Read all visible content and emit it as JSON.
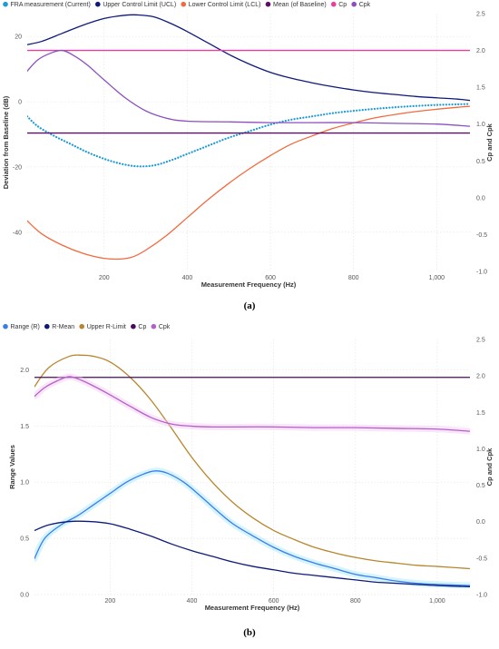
{
  "chart_data": [
    {
      "type": "line",
      "panel_label": "(a)",
      "xlabel": "Measurement Frequency (Hz)",
      "ylabel": "Deviation from Baseline (dB)",
      "y2label": "Cp and Cpk",
      "xlim": [
        15,
        1080
      ],
      "ylim": [
        -52,
        27
      ],
      "y2lim": [
        -1.0,
        2.5
      ],
      "x_ticks": [
        200,
        400,
        600,
        800,
        1000
      ],
      "x_tick_labels": [
        "200",
        "400",
        "600",
        "800",
        "1,000"
      ],
      "y_ticks": [
        20,
        0,
        -20,
        -40
      ],
      "y_tick_labels": [
        "20",
        "0",
        "-20",
        "-40"
      ],
      "y2_ticks": [
        2.5,
        2.0,
        1.5,
        1.0,
        0.5,
        0.0,
        -0.5,
        -1.0
      ],
      "y2_tick_labels": [
        "2.5",
        "2.0",
        "1.5",
        "1.0",
        "0.5",
        "0.0",
        "-0.5",
        "-1.0"
      ],
      "grid": true,
      "legend_position": "top-left",
      "series": [
        {
          "name": "FRA measurement (Current)",
          "color": "#1f9bd7",
          "style": "dotted",
          "axis": "left",
          "x": [
            15,
            40,
            80,
            120,
            160,
            200,
            240,
            280,
            320,
            360,
            400,
            450,
            500,
            550,
            600,
            650,
            700,
            750,
            800,
            850,
            900,
            950,
            1000,
            1050,
            1080
          ],
          "y": [
            -4.5,
            -7.5,
            -10.5,
            -13,
            -15.5,
            -17.5,
            -19,
            -19.8,
            -19.5,
            -18,
            -16,
            -13.5,
            -11,
            -9,
            -7,
            -5.5,
            -4.5,
            -3.5,
            -2.8,
            -2.2,
            -1.7,
            -1.3,
            -1,
            -0.8,
            -0.7
          ]
        },
        {
          "name": "Upper Control Limit (UCL)",
          "color": "#0d1a7a",
          "style": "solid",
          "axis": "left",
          "x": [
            15,
            50,
            100,
            150,
            200,
            250,
            280,
            320,
            360,
            400,
            450,
            500,
            550,
            600,
            650,
            700,
            750,
            800,
            850,
            900,
            950,
            1000,
            1050,
            1080
          ],
          "y": [
            17.5,
            18.5,
            21,
            23.5,
            25.5,
            26.5,
            26.6,
            26,
            24,
            21.5,
            18,
            14.5,
            11.5,
            9,
            7.2,
            5.8,
            4.6,
            3.6,
            2.8,
            2.2,
            1.6,
            1.2,
            0.8,
            0.4
          ]
        },
        {
          "name": "Lower Control Limit (LCL)",
          "color": "#f26a3d",
          "style": "solid",
          "axis": "left",
          "x": [
            15,
            50,
            100,
            150,
            200,
            240,
            270,
            300,
            350,
            400,
            450,
            500,
            550,
            600,
            650,
            700,
            750,
            800,
            850,
            900,
            950,
            1000,
            1050,
            1080
          ],
          "y": [
            -36.5,
            -40.5,
            -44,
            -46.5,
            -48,
            -48.2,
            -47.5,
            -45.5,
            -41,
            -35.5,
            -30,
            -25,
            -20.5,
            -16.5,
            -13,
            -10.5,
            -8.2,
            -6.5,
            -5,
            -3.9,
            -3,
            -2.3,
            -1.7,
            -1.4
          ]
        },
        {
          "name": "Mean (of Baseline)",
          "color": "#5c0f63",
          "style": "solid",
          "axis": "left",
          "x": [
            15,
            1080
          ],
          "y": [
            -9.6,
            -9.6
          ]
        },
        {
          "name": "Cp",
          "color": "#e83e9e",
          "style": "solid",
          "axis": "right",
          "x": [
            15,
            1080
          ],
          "y": [
            2.0,
            2.0
          ]
        },
        {
          "name": "Cpk",
          "color": "#8c4fc0",
          "style": "solid",
          "axis": "right",
          "x": [
            15,
            40,
            70,
            100,
            130,
            160,
            200,
            250,
            300,
            350,
            400,
            500,
            600,
            700,
            800,
            900,
            1000,
            1080
          ],
          "y": [
            1.72,
            1.87,
            1.96,
            2.0,
            1.92,
            1.8,
            1.6,
            1.36,
            1.18,
            1.08,
            1.04,
            1.03,
            1.02,
            1.02,
            1.02,
            1.01,
            1.0,
            0.97
          ]
        }
      ]
    },
    {
      "type": "line",
      "panel_label": "(b)",
      "xlabel": "Measurement Frequency (Hz)",
      "ylabel": "Range Values",
      "y2label": "Cp and Cpk",
      "xlim": [
        15,
        1080
      ],
      "ylim": [
        0,
        2.27
      ],
      "y2lim": [
        -1.0,
        2.5
      ],
      "x_ticks": [
        200,
        400,
        600,
        800,
        1000
      ],
      "x_tick_labels": [
        "200",
        "400",
        "600",
        "800",
        "1,000"
      ],
      "y_ticks": [
        2.0,
        1.5,
        1.0,
        0.5,
        0.0
      ],
      "y_tick_labels": [
        "2.0",
        "1.5",
        "1.0",
        "0.5",
        "0.0"
      ],
      "y2_ticks": [
        2.5,
        2.0,
        1.5,
        1.0,
        0.5,
        0.0,
        -0.5,
        -1.0
      ],
      "y2_tick_labels": [
        "2.5",
        "2.0",
        "1.5",
        "1.0",
        "0.5",
        "0.0",
        "-0.5",
        "-1.0"
      ],
      "grid": true,
      "legend_position": "top-left",
      "series": [
        {
          "name": "Range (R)",
          "color": "#3b7de8",
          "style": "solid",
          "axis": "left",
          "glow": "#9fe6ff",
          "x": [
            15,
            40,
            80,
            120,
            160,
            200,
            240,
            280,
            310,
            340,
            380,
            420,
            460,
            500,
            550,
            600,
            650,
            700,
            750,
            800,
            850,
            900,
            950,
            1000,
            1080
          ],
          "y": [
            0.32,
            0.5,
            0.62,
            0.7,
            0.8,
            0.9,
            1.0,
            1.07,
            1.1,
            1.08,
            1.0,
            0.88,
            0.75,
            0.63,
            0.52,
            0.42,
            0.34,
            0.28,
            0.23,
            0.18,
            0.15,
            0.12,
            0.1,
            0.09,
            0.08
          ]
        },
        {
          "name": "R-Mean",
          "color": "#0d1a7a",
          "style": "solid",
          "axis": "left",
          "x": [
            15,
            50,
            100,
            150,
            200,
            250,
            300,
            350,
            400,
            450,
            500,
            550,
            600,
            650,
            700,
            750,
            800,
            850,
            900,
            950,
            1000,
            1080
          ],
          "y": [
            0.57,
            0.62,
            0.65,
            0.65,
            0.63,
            0.58,
            0.52,
            0.45,
            0.39,
            0.34,
            0.29,
            0.25,
            0.22,
            0.19,
            0.17,
            0.15,
            0.13,
            0.11,
            0.1,
            0.09,
            0.08,
            0.07
          ]
        },
        {
          "name": "Upper R-Limit",
          "color": "#b8862e",
          "style": "solid",
          "axis": "left",
          "x": [
            15,
            50,
            100,
            130,
            160,
            200,
            250,
            300,
            350,
            400,
            450,
            500,
            550,
            600,
            650,
            700,
            750,
            800,
            850,
            900,
            950,
            1000,
            1080
          ],
          "y": [
            1.85,
            2.02,
            2.12,
            2.13,
            2.12,
            2.07,
            1.93,
            1.73,
            1.48,
            1.22,
            1.0,
            0.82,
            0.68,
            0.57,
            0.49,
            0.42,
            0.37,
            0.33,
            0.3,
            0.28,
            0.26,
            0.25,
            0.23
          ]
        },
        {
          "name": "Cp",
          "color": "#4a0a5e",
          "style": "solid",
          "axis": "right",
          "x": [
            15,
            1080
          ],
          "y": [
            1.98,
            1.98
          ]
        },
        {
          "name": "Cpk",
          "color": "#b261c9",
          "style": "solid",
          "axis": "right",
          "glow": "#f3c6f3",
          "x": [
            15,
            40,
            70,
            100,
            130,
            160,
            200,
            250,
            300,
            350,
            400,
            450,
            500,
            600,
            700,
            800,
            900,
            1000,
            1080
          ],
          "y": [
            1.72,
            1.84,
            1.93,
            1.99,
            1.94,
            1.86,
            1.74,
            1.58,
            1.43,
            1.34,
            1.31,
            1.3,
            1.3,
            1.3,
            1.29,
            1.29,
            1.28,
            1.27,
            1.24
          ]
        }
      ]
    }
  ]
}
